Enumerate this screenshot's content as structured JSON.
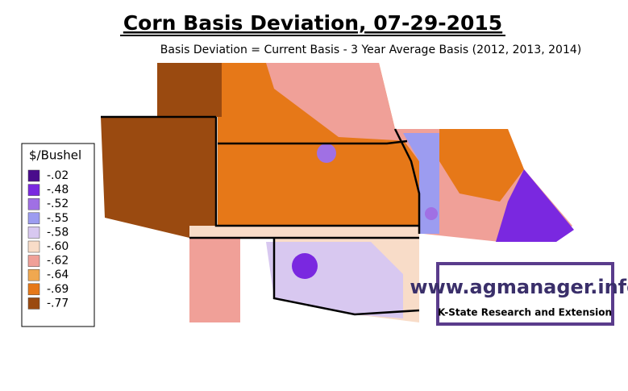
{
  "title": "Corn Basis Deviation, 07-29-2015",
  "subtitle": "Basis Deviation = Current Basis - 3 Year Average Basis (2012, 2013, 2014)",
  "legend": {
    "title": "$/Bushel",
    "items": [
      {
        "label": "-.02",
        "color": "#4a0c8c"
      },
      {
        "label": "-.48",
        "color": "#7a28e0"
      },
      {
        "label": "-.52",
        "color": "#a070e4"
      },
      {
        "label": "-.55",
        "color": "#9c9cf0"
      },
      {
        "label": "-.58",
        "color": "#d8c8f0"
      },
      {
        "label": "-.60",
        "color": "#f8dcc8"
      },
      {
        "label": "-.62",
        "color": "#f0a098"
      },
      {
        "label": "-.64",
        "color": "#f0a850"
      },
      {
        "label": "-.69",
        "color": "#e67818"
      },
      {
        "label": "-.77",
        "color": "#9a4a10"
      }
    ]
  },
  "watermark": {
    "url": "www.agmanager.info",
    "org": "K-State Research and Extension"
  }
}
